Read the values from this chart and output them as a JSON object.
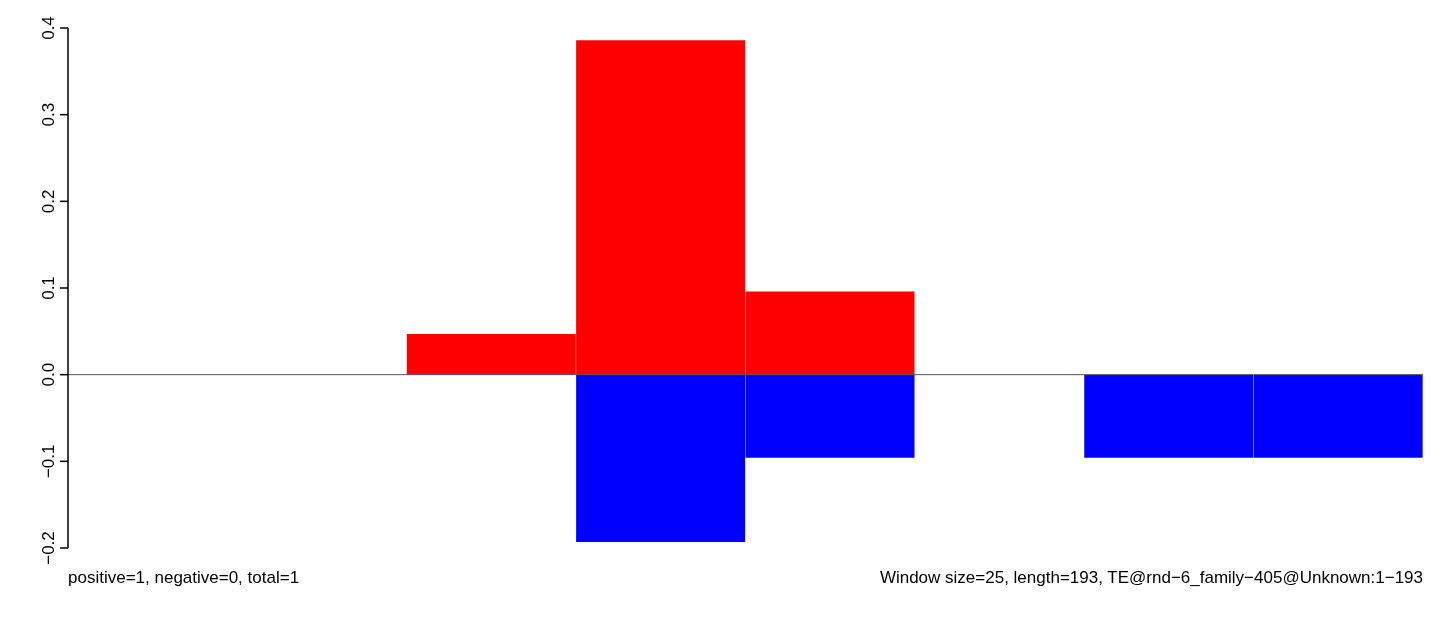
{
  "chart_data": {
    "type": "bar",
    "stacked": true,
    "categories": [
      null,
      null,
      null,
      null,
      null,
      null,
      null,
      null
    ],
    "series": [
      {
        "color": "#ff0000",
        "values": [
          null,
          null,
          0.047,
          0.386,
          0.096,
          null,
          null,
          null
        ]
      },
      {
        "color": "#0000ff",
        "values": [
          null,
          null,
          null,
          -0.193,
          -0.096,
          null,
          -0.096,
          -0.096
        ]
      }
    ],
    "ylim": [
      -0.2,
      0.4
    ],
    "yticks": [
      {
        "value": -0.2,
        "label": "−0.2"
      },
      {
        "value": -0.1,
        "label": "−0.1"
      },
      {
        "value": 0,
        "label": "0.0"
      },
      {
        "value": 0.1,
        "label": "0.1"
      },
      {
        "value": 0.2,
        "label": "0.2"
      },
      {
        "value": 0.3,
        "label": "0.3"
      },
      {
        "value": 0.4,
        "label": "0.4"
      }
    ],
    "ref_lines": [
      {
        "axis": "y",
        "value": 0,
        "color": "#555555"
      }
    ],
    "annotations": [
      "positive=1, negative=0, total=1",
      "Window size=25, length=193, TE@rnd−6_family−405@Unknown:1−193"
    ]
  }
}
